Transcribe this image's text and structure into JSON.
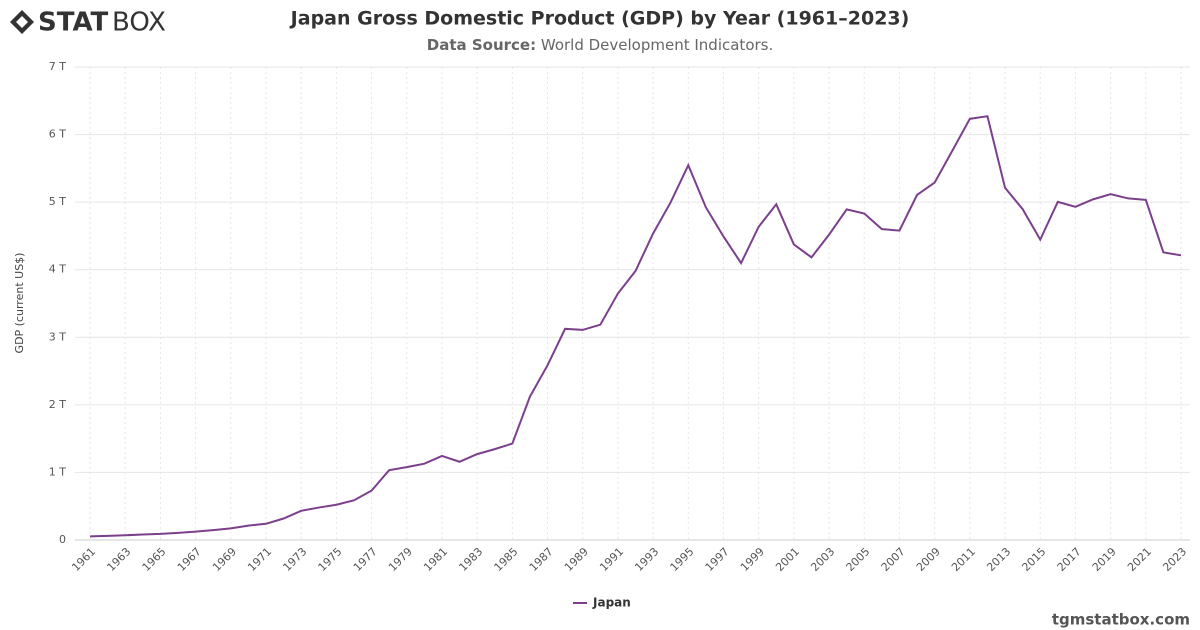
{
  "chart_data": {
    "type": "line",
    "brand": [
      "STAT",
      "BOX"
    ],
    "title": "Japan Gross Domestic Product (GDP) by Year (1961–2023)",
    "source_label": "Data Source:",
    "source": "World Development Indicators.",
    "ylabel": "GDP (current US$)",
    "website": "tgmstatbox.com",
    "x": [
      1961,
      1962,
      1963,
      1964,
      1965,
      1966,
      1967,
      1968,
      1969,
      1970,
      1971,
      1972,
      1973,
      1974,
      1975,
      1976,
      1977,
      1978,
      1979,
      1980,
      1981,
      1982,
      1983,
      1984,
      1985,
      1986,
      1987,
      1988,
      1989,
      1990,
      1991,
      1992,
      1993,
      1994,
      1995,
      1996,
      1997,
      1998,
      1999,
      2000,
      2001,
      2002,
      2003,
      2004,
      2005,
      2006,
      2007,
      2008,
      2009,
      2010,
      2011,
      2012,
      2013,
      2014,
      2015,
      2016,
      2017,
      2018,
      2019,
      2020,
      2021,
      2022,
      2023
    ],
    "series": [
      {
        "name": "Japan",
        "color": "#7b3f8c",
        "values": [
          0.053,
          0.061,
          0.07,
          0.082,
          0.091,
          0.106,
          0.124,
          0.147,
          0.172,
          0.213,
          0.24,
          0.318,
          0.432,
          0.48,
          0.522,
          0.587,
          0.731,
          1.033,
          1.078,
          1.129,
          1.244,
          1.158,
          1.271,
          1.345,
          1.427,
          2.121,
          2.585,
          3.125,
          3.109,
          3.186,
          3.648,
          3.981,
          4.536,
          4.999,
          5.546,
          4.923,
          4.492,
          4.098,
          4.636,
          4.968,
          4.374,
          4.183,
          4.519,
          4.893,
          4.831,
          4.601,
          4.579,
          5.106,
          5.289,
          5.759,
          6.233,
          6.272,
          5.212,
          4.897,
          4.445,
          5.004,
          4.931,
          5.041,
          5.118,
          5.055,
          5.034,
          4.256,
          4.213
        ]
      }
    ],
    "xlim": [
      1961,
      2023
    ],
    "xticks": [
      1961,
      1963,
      1965,
      1967,
      1969,
      1971,
      1973,
      1975,
      1977,
      1979,
      1981,
      1983,
      1985,
      1987,
      1989,
      1991,
      1993,
      1995,
      1997,
      1999,
      2001,
      2003,
      2005,
      2007,
      2009,
      2011,
      2013,
      2015,
      2017,
      2019,
      2021,
      2023
    ],
    "ylim": [
      0,
      7
    ],
    "yticks": [
      0,
      {
        "value": 1,
        "label": "1 T"
      },
      {
        "value": 2,
        "label": "2 T"
      },
      {
        "value": 3,
        "label": "3 T"
      },
      {
        "value": 4,
        "label": "4 T"
      },
      {
        "value": 5,
        "label": "5 T"
      },
      {
        "value": 6,
        "label": "6 T"
      },
      {
        "value": 7,
        "label": "7 T"
      }
    ],
    "grid": true
  }
}
